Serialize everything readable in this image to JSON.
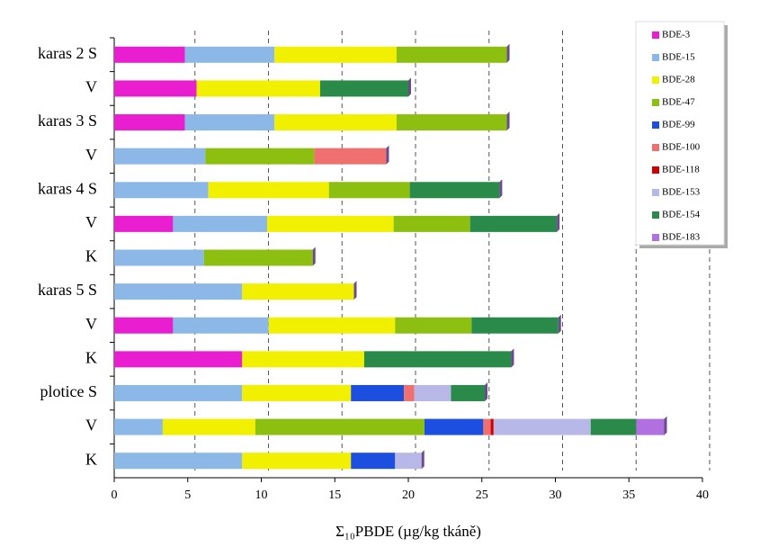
{
  "chart_data": {
    "type": "stacked-bar-horizontal",
    "x_label": "Σ₁₀PBDE (µg/kg tkáně)",
    "categories": [
      "karas 2 S",
      "V",
      "karas 3 S",
      "V",
      "karas 4 S",
      "V",
      "K",
      "karas 5 S",
      "V",
      "K",
      "plotice S",
      "V",
      "K"
    ],
    "series": [
      {
        "name": "BDE-3",
        "color": "#e81ed0",
        "values": [
          4.8,
          5.6,
          4.8,
          null,
          null,
          4.0,
          null,
          null,
          4.0,
          8.7,
          null,
          null,
          null
        ]
      },
      {
        "name": "BDE-15",
        "color": "#8cb8e8",
        "values": [
          6.1,
          null,
          6.1,
          6.2,
          6.4,
          6.4,
          6.1,
          8.7,
          6.5,
          null,
          8.7,
          3.3,
          8.7
        ]
      },
      {
        "name": "BDE-28",
        "color": "#f0f000",
        "values": [
          8.3,
          8.4,
          8.3,
          null,
          8.2,
          8.6,
          null,
          7.6,
          8.6,
          8.3,
          7.4,
          6.3,
          7.4
        ]
      },
      {
        "name": "BDE-47",
        "color": "#8cbf10",
        "values": [
          7.5,
          null,
          7.5,
          7.4,
          5.5,
          5.2,
          7.4,
          null,
          5.2,
          null,
          null,
          11.5,
          null
        ]
      },
      {
        "name": "BDE-99",
        "color": "#1c4fe0",
        "values": [
          null,
          null,
          null,
          null,
          null,
          null,
          null,
          null,
          null,
          null,
          3.6,
          4.0,
          3.0
        ]
      },
      {
        "name": "BDE-100",
        "color": "#f07070",
        "values": [
          null,
          null,
          null,
          4.9,
          null,
          null,
          null,
          null,
          null,
          null,
          0.7,
          0.5,
          null
        ]
      },
      {
        "name": "BDE-118",
        "color": "#d00000",
        "values": [
          null,
          null,
          null,
          null,
          null,
          null,
          null,
          null,
          null,
          null,
          null,
          0.2,
          null
        ]
      },
      {
        "name": "BDE-153",
        "color": "#b8b8e8",
        "values": [
          null,
          null,
          null,
          null,
          null,
          null,
          null,
          null,
          null,
          null,
          2.5,
          6.6,
          1.8
        ]
      },
      {
        "name": "BDE-154",
        "color": "#2a8a4a",
        "values": [
          null,
          6.0,
          null,
          null,
          6.1,
          5.9,
          null,
          null,
          5.9,
          10.0,
          2.3,
          3.1,
          null
        ]
      },
      {
        "name": "BDE-183",
        "color": "#b070e0",
        "values": [
          null,
          null,
          null,
          null,
          null,
          null,
          null,
          null,
          null,
          null,
          null,
          1.9,
          null
        ]
      }
    ],
    "xlim": [
      0,
      40
    ],
    "xticks": [
      0,
      5,
      10,
      15,
      20,
      25,
      30,
      35,
      40
    ],
    "grid": true,
    "legend": "top-right"
  }
}
